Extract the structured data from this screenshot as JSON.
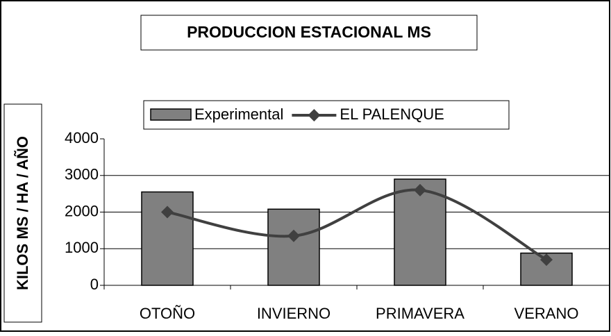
{
  "chart_data": {
    "type": "bar-line",
    "title": "PRODUCCION ESTACIONAL MS",
    "y_label": "KILOS MS / HA / AÑO",
    "categories": [
      "OTOÑO",
      "INVIERNO",
      "PRIMAVERA",
      "VERANO"
    ],
    "series": [
      {
        "name": "Experimental",
        "type": "bar",
        "color": "#808080",
        "values": [
          2550,
          2080,
          2900,
          880
        ]
      },
      {
        "name": "EL PALENQUE",
        "type": "line",
        "color": "#404040",
        "values": [
          2000,
          1350,
          2600,
          700
        ]
      }
    ],
    "ylim": [
      0,
      4000
    ],
    "yticks": [
      0,
      1000,
      2000,
      3000,
      4000
    ],
    "grid": true,
    "legend": "top"
  }
}
